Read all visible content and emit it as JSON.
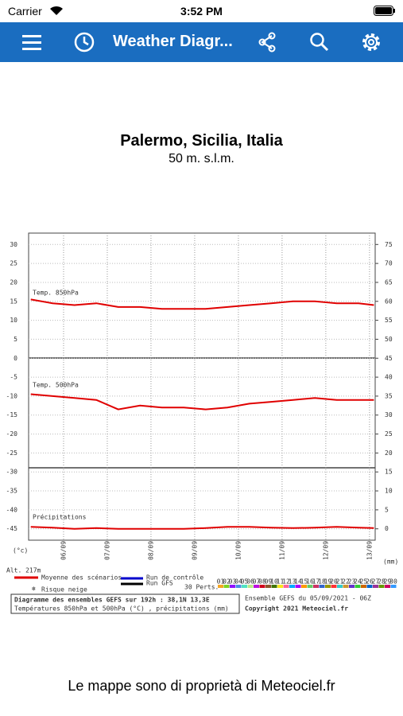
{
  "status_bar": {
    "carrier": "Carrier",
    "time": "3:52 PM"
  },
  "nav_bar": {
    "title": "Weather Diagr..."
  },
  "location": {
    "name": "Palermo, Sicilia, Italia",
    "elevation": "50 m. s.l.m."
  },
  "chart_data": {
    "type": "line",
    "x": [
      -0.75,
      -0.25,
      0.25,
      0.75,
      1.25,
      1.75,
      2.25,
      2.75,
      3.25,
      3.75,
      4.25,
      4.75,
      5.25,
      5.75,
      6.25,
      6.75,
      7.1
    ],
    "xlim": [
      -0.8,
      7.13
    ],
    "xticks": [
      {
        "value": 0,
        "label": "06/09"
      },
      {
        "value": 1,
        "label": "07/09"
      },
      {
        "value": 2,
        "label": "08/09"
      },
      {
        "value": 3,
        "label": "09/09"
      },
      {
        "value": 4,
        "label": "10/09"
      },
      {
        "value": 5,
        "label": "11/09"
      },
      {
        "value": 6,
        "label": "12/09"
      },
      {
        "value": 7,
        "label": "13/09"
      }
    ],
    "ylim": [
      -48,
      33
    ],
    "yticks": [
      30,
      25,
      20,
      15,
      10,
      5,
      0,
      -5,
      -10,
      -15,
      -20,
      -25,
      -30,
      -35,
      -40,
      -45
    ],
    "y2lim": [
      -3,
      78
    ],
    "y2ticks": [
      75,
      70,
      65,
      60,
      55,
      50,
      45,
      40,
      35,
      30,
      25,
      20,
      15,
      10,
      5,
      0
    ],
    "y_label": "(°c)",
    "altitude": "Alt. 217m",
    "y2_label": "(mm)",
    "series": [
      {
        "name": "Temp. 850hPa",
        "color": "#e00000",
        "values": [
          15.5,
          14.5,
          14,
          14.5,
          13.5,
          13.5,
          13,
          13,
          13,
          13.5,
          14,
          14.5,
          15,
          15,
          14.5,
          14.5,
          14
        ]
      },
      {
        "name": "Temp. 500hPa",
        "color": "#e00000",
        "values": [
          -9.5,
          -10,
          -10.5,
          -11,
          -13.5,
          -12.5,
          -13,
          -13,
          -13.5,
          -13,
          -12,
          -11.5,
          -11,
          -10.5,
          -11,
          -11,
          -11
        ]
      },
      {
        "name": "Précipitations",
        "color": "#e00000",
        "axis": "y2",
        "values": [
          0.5,
          0.3,
          0,
          0.2,
          0,
          0,
          0,
          0,
          0.2,
          0.5,
          0.5,
          0.3,
          0.2,
          0.3,
          0.5,
          0.3,
          0.2
        ]
      }
    ],
    "grid": true
  },
  "chart_legend": {
    "mean": "Moyenne des scénarios",
    "mean_color": "#e00000",
    "control": "Run de contrôle",
    "control_color": "#0000cc",
    "gfs": "Run GFS",
    "gfs_color": "#000000",
    "snow": "Risque neige",
    "perts": "30 Perts.",
    "members": [
      "01",
      "02",
      "03",
      "04",
      "05",
      "06",
      "07",
      "08",
      "09",
      "10",
      "11",
      "12",
      "13",
      "14",
      "15",
      "16",
      "17",
      "18",
      "19",
      "20",
      "21",
      "22",
      "23",
      "24",
      "25",
      "26",
      "27",
      "28",
      "29",
      "30"
    ],
    "member_colors": [
      "#f5a623",
      "#7ed321",
      "#9013fe",
      "#4a90e2",
      "#50e3c2",
      "#b8e986",
      "#bd10e0",
      "#d0021b",
      "#8b572a",
      "#417505",
      "#f8e71c",
      "#ff6699",
      "#00aaff",
      "#aa00ff",
      "#ff9900",
      "#66cc66",
      "#cc3366",
      "#3366cc",
      "#999900",
      "#ff3333",
      "#33cccc",
      "#cc9933",
      "#6633cc",
      "#33cc33",
      "#cc6600",
      "#0066cc",
      "#993399",
      "#669900",
      "#cc0066",
      "#3399ff"
    ],
    "info_line1": "Diagramme des ensembles GEFS sur 192h : 38,1N 13,3E",
    "info_line2": "Températures 850hPa et 500hPa (°C) , précipitations (mm)",
    "run": "Ensemble GEFS du 05/09/2021 - 06Z",
    "copyright": "Copyright 2021 Meteociel.fr"
  },
  "footer": "Le mappe sono di proprietà di Meteociel.fr"
}
